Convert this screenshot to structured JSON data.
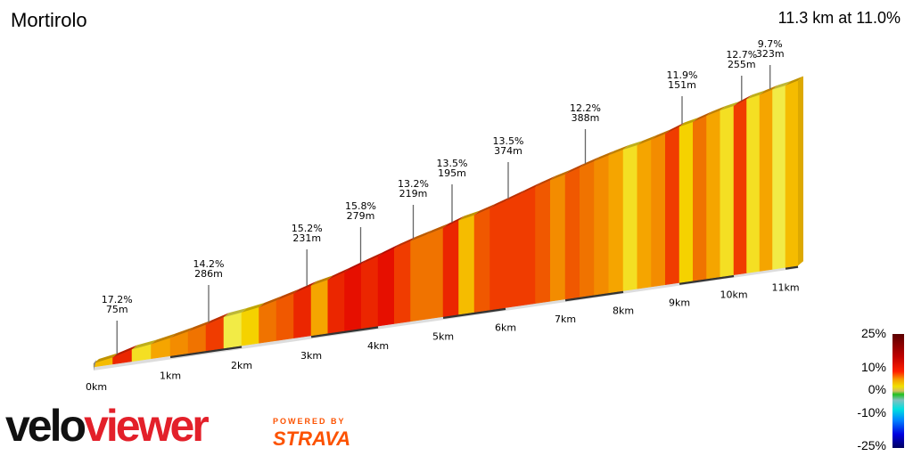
{
  "header": {
    "title": "Mortirolo",
    "summary": "11.3 km at 11.0%"
  },
  "chart_data": {
    "type": "area",
    "title": "Mortirolo",
    "xlabel": "",
    "ylabel": "",
    "x_unit": "km",
    "x_ticks": [
      "0km",
      "1km",
      "2km",
      "3km",
      "4km",
      "5km",
      "6km",
      "7km",
      "8km",
      "9km",
      "10km",
      "11km"
    ],
    "segment_length_km": 0.25,
    "segment_gradients_pct": [
      9,
      15,
      7,
      10,
      11,
      12,
      14,
      6,
      8,
      12,
      13,
      15,
      10,
      15,
      16,
      15,
      16,
      14,
      12,
      12,
      15,
      9,
      13,
      14,
      14,
      14,
      13,
      11,
      13,
      12,
      11,
      10,
      7,
      10,
      11,
      14,
      8,
      12,
      10,
      7,
      14,
      7,
      10,
      6,
      9
    ],
    "annotations": [
      {
        "km": 0.27,
        "gradient": "17.2%",
        "length": "75m"
      },
      {
        "km": 1.5,
        "gradient": "14.2%",
        "length": "286m"
      },
      {
        "km": 2.9,
        "gradient": "15.2%",
        "length": "231m"
      },
      {
        "km": 3.7,
        "gradient": "15.8%",
        "length": "279m"
      },
      {
        "km": 4.5,
        "gradient": "13.2%",
        "length": "219m"
      },
      {
        "km": 5.1,
        "gradient": "13.5%",
        "length": "195m"
      },
      {
        "km": 6.0,
        "gradient": "13.5%",
        "length": "374m"
      },
      {
        "km": 7.3,
        "gradient": "12.2%",
        "length": "388m"
      },
      {
        "km": 9.0,
        "gradient": "11.9%",
        "length": "151m"
      },
      {
        "km": 10.1,
        "gradient": "12.7%",
        "length": "255m"
      },
      {
        "km": 10.65,
        "gradient": "9.7%",
        "length": "323m"
      }
    ],
    "legend": {
      "ticks": [
        "25%",
        "10%",
        "0%",
        "-10%",
        "-25%"
      ],
      "placement": "bottom-right"
    }
  },
  "branding": {
    "logo_part1": "velo",
    "logo_part2": "viewer",
    "powered": "POWERED BY",
    "strava": "STRAVA"
  }
}
